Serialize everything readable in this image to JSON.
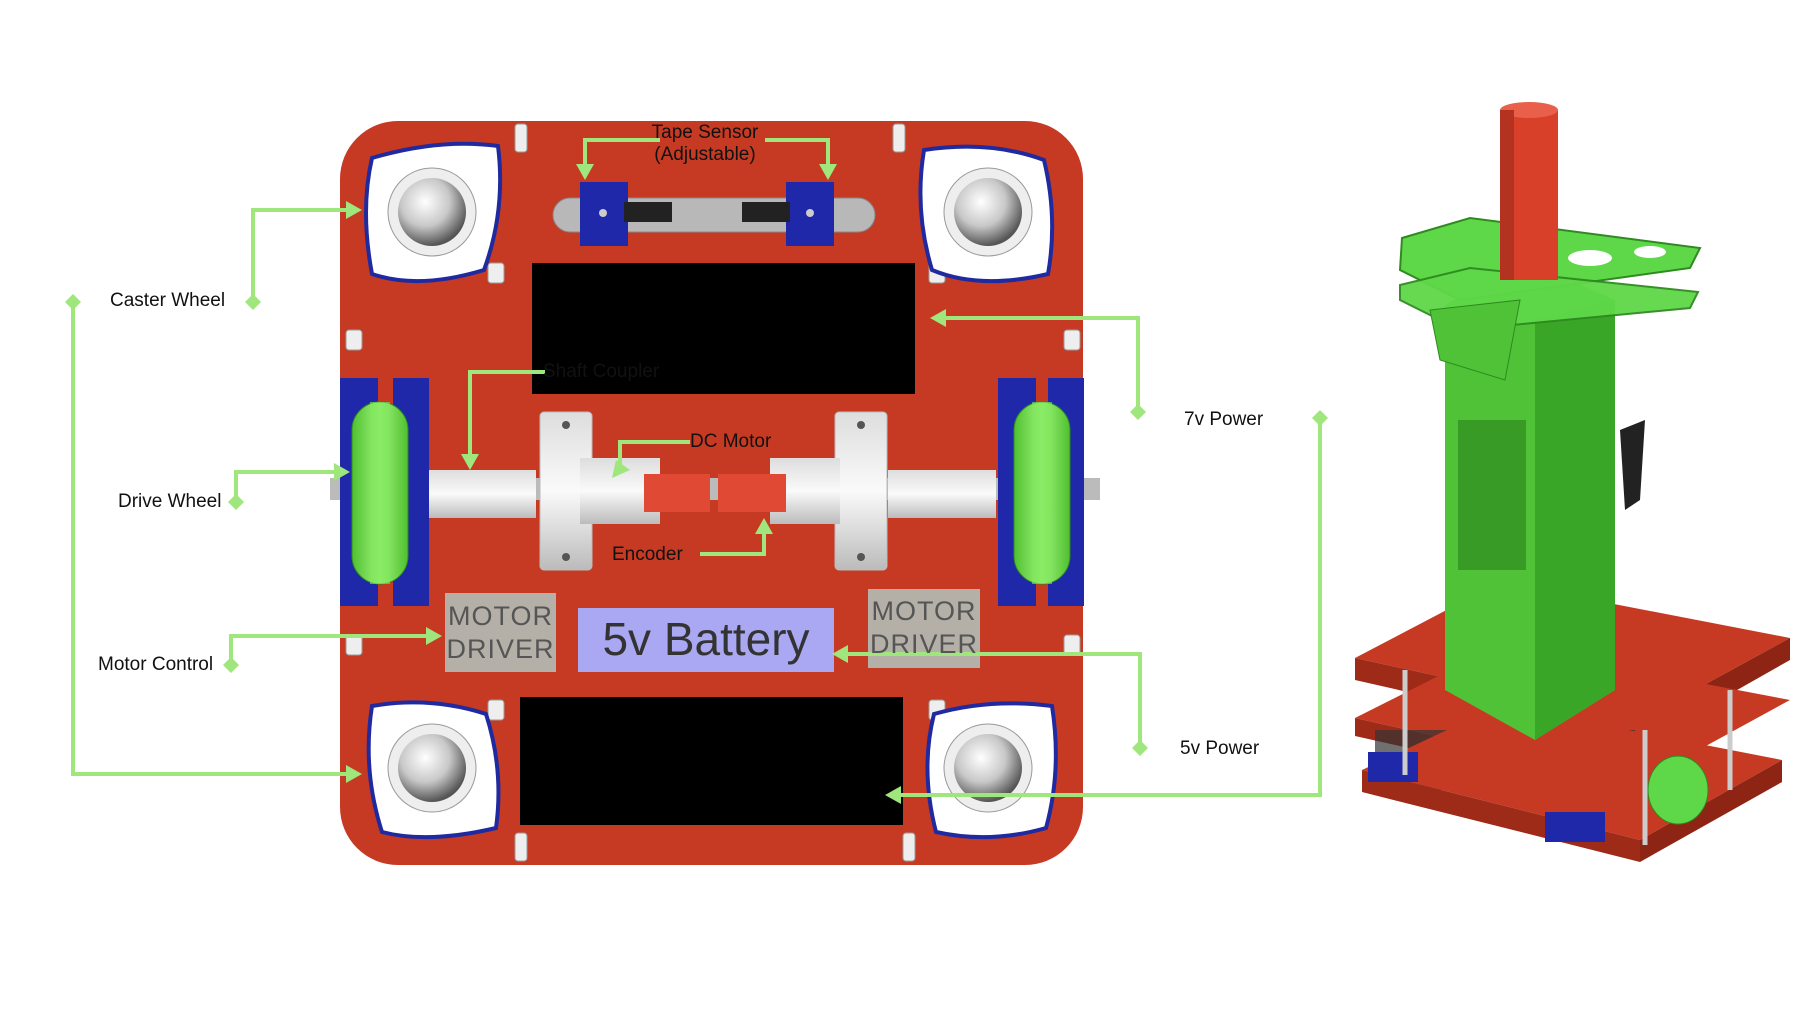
{
  "labels": {
    "tape_sensor": "Tape Sensor",
    "tape_sensor_note": "(Adjustable)",
    "caster_wheel": "Caster Wheel",
    "shaft_coupler": "Shaft Coupler",
    "dc_motor": "DC Motor",
    "seven_v_power": "7v Power",
    "drive_wheel": "Drive Wheel",
    "encoder": "Encoder",
    "motor_control": "Motor Control",
    "five_v_power": "5v Power"
  },
  "components": {
    "motor_driver_left": [
      "MOTOR",
      "DRIVER"
    ],
    "motor_driver_right": [
      "MOTOR",
      "DRIVER"
    ],
    "battery": "5v Battery"
  },
  "colors": {
    "board": "#c63a23",
    "leader": "#9fe67c",
    "bracket": "#1f28a8",
    "wheel": "#7fe85a",
    "motor_driver_box": "#b4b0a8",
    "battery_box": "#aaa8f2",
    "panel": "#000000",
    "encoder": "#e04a35",
    "tower": "#5ed848"
  }
}
